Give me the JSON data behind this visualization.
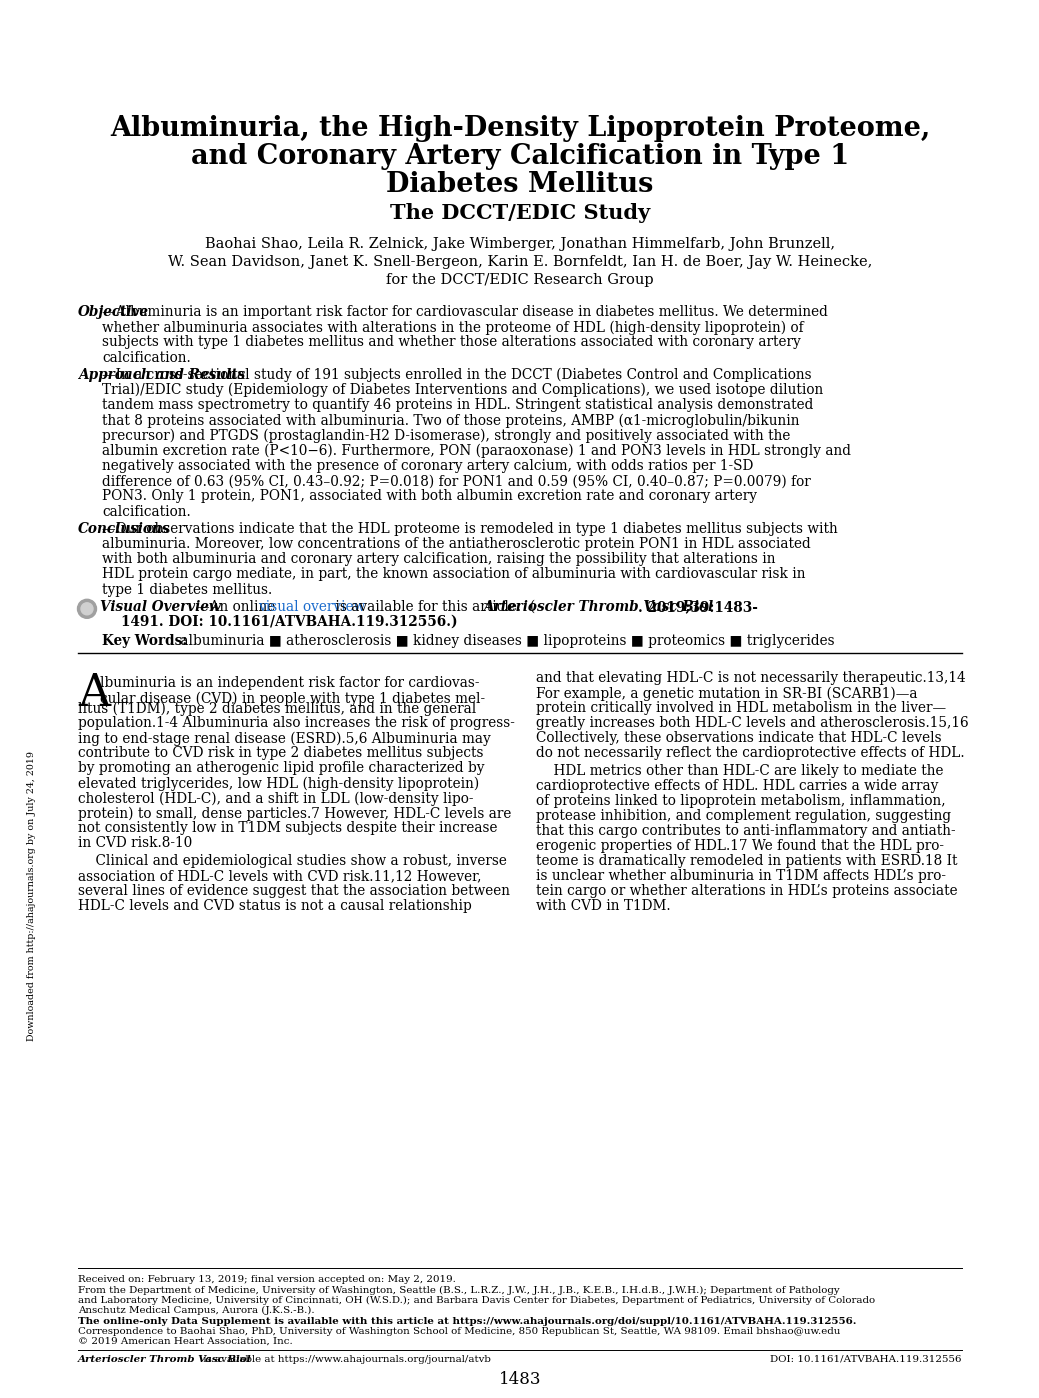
{
  "bg_color": "#ffffff",
  "title_line1": "Albuminuria, the High-Density Lipoprotein Proteome,",
  "title_line2": "and Coronary Artery Calcification in Type 1",
  "title_line3": "Diabetes Mellitus",
  "subtitle": "The DCCT/EDIC Study",
  "authors_line1": "Baohai Shao, Leila R. Zelnick, Jake Wimberger, Jonathan Himmelfarb, John Brunzell,",
  "authors_line2": "W. Sean Davidson, Janet K. Snell-Bergeon, Karin E. Bornfeldt, Ian H. de Boer, Jay W. Heinecke,",
  "authors_line3": "for the DCCT/EDIC Research Group",
  "obj_label": "Objective",
  "obj_text": "—Albuminuria is an important risk factor for cardiovascular disease in diabetes mellitus. We determined whether albuminuria associates with alterations in the proteome of HDL (high-density lipoprotein) of subjects with type 1 diabetes mellitus and whether those alterations associated with coronary artery calcification.",
  "app_label": "Approach and Results",
  "app_text": "—In a cross-sectional study of 191 subjects enrolled in the DCCT (Diabetes Control and Complications Trial)/EDIC study (Epidemiology of Diabetes Interventions and Complications), we used isotope dilution tandem mass spectrometry to quantify 46 proteins in HDL. Stringent statistical analysis demonstrated that 8 proteins associated with albuminuria. Two of those proteins, AMBP (α1-microglobulin/bikunin precursor) and PTGDS (prostaglandin-H2 D-isomerase), strongly and positively associated with the albumin excretion rate (P<10−6). Furthermore, PON (paraoxonase) 1 and PON3 levels in HDL strongly and negatively associated with the presence of coronary artery calcium, with odds ratios per 1-SD difference of 0.63 (95% CI, 0.43–0.92; P=0.018) for PON1 and 0.59 (95% CI, 0.40–0.87; P=0.0079) for PON3. Only 1 protein, PON1, associated with both albumin excretion rate and coronary artery calcification.",
  "conc_label": "Conclusions",
  "conc_text": "—Our observations indicate that the HDL proteome is remodeled in type 1 diabetes mellitus subjects with albuminuria. Moreover, low concentrations of the antiatherosclerotic protein PON1 in HDL associated with both albuminuria and coronary artery calcification, raising the possibility that alterations in HDL protein cargo mediate, in part, the known association of albuminuria with cardiovascular risk in type 1 diabetes mellitus.",
  "vis_label": "Visual Overview",
  "vis_text1": "—An online ",
  "vis_link": "visual overview",
  "vis_text2": " is available for this article.  (",
  "vis_italic": "Arterioscler Thromb Vasc Biol",
  "vis_bold1": ". 2019;39:1483-",
  "vis_bold2": "    1491. DOI: 10.1161/ATVBAHA.119.312556.)",
  "kw_label": "Key Words:",
  "kw_text": " albuminuria ■ atherosclerosis ■ kidney diseases ■ lipoproteins ■ proteomics ■ triglycerides",
  "col1_p1a": "lbuminuria is an independent risk factor for cardiovas-",
  "col1_p1b": "cular disease (CVD) in people with type 1 diabetes mel-",
  "col1_p1c": "litus (T1DM), type 2 diabetes mellitus, and in the general",
  "col1_p1d": "population.1-4 Albuminuria also increases the risk of progress-",
  "col1_p1e": "ing to end-stage renal disease (ESRD).5,6 Albuminuria may",
  "col1_p1f": "contribute to CVD risk in type 2 diabetes mellitus subjects",
  "col1_p1g": "by promoting an atherogenic lipid profile characterized by",
  "col1_p1h": "elevated triglycerides, low HDL (high-density lipoprotein)",
  "col1_p1i": "cholesterol (HDL-C), and a shift in LDL (low-density lipo-",
  "col1_p1j": "protein) to small, dense particles.7 However, HDL-C levels are",
  "col1_p1k": "not consistently low in T1DM subjects despite their increase",
  "col1_p1l": "in CVD risk.8-10",
  "col1_p2a": "    Clinical and epidemiological studies show a robust, inverse",
  "col1_p2b": "association of HDL-C levels with CVD risk.11,12 However,",
  "col1_p2c": "several lines of evidence suggest that the association between",
  "col1_p2d": "HDL-C levels and CVD status is not a causal relationship",
  "col2_p1a": "and that elevating HDL-C is not necessarily therapeutic.13,14",
  "col2_p1b": "For example, a genetic mutation in SR-BI (SCARB1)—a",
  "col2_p1c": "protein critically involved in HDL metabolism in the liver—",
  "col2_p1d": "greatly increases both HDL-C levels and atherosclerosis.15,16",
  "col2_p1e": "Collectively, these observations indicate that HDL-C levels",
  "col2_p1f": "do not necessarily reflect the cardioprotective effects of HDL.",
  "col2_p2a": "    HDL metrics other than HDL-C are likely to mediate the",
  "col2_p2b": "cardioprotective effects of HDL. HDL carries a wide array",
  "col2_p2c": "of proteins linked to lipoprotein metabolism, inflammation,",
  "col2_p2d": "protease inhibition, and complement regulation, suggesting",
  "col2_p2e": "that this cargo contributes to anti-inflammatory and antiath-",
  "col2_p2f": "erogenic properties of HDL.17 We found that the HDL pro-",
  "col2_p2g": "teome is dramatically remodeled in patients with ESRD.18 It",
  "col2_p2h": "is unclear whether albuminuria in T1DM affects HDL’s pro-",
  "col2_p2i": "tein cargo or whether alterations in HDL’s proteins associate",
  "col2_p2j": "with CVD in T1DM.",
  "footer_received": "Received on: February 13, 2019; final version accepted on: May 2, 2019.",
  "footer_from1": "From the Department of Medicine, University of Washington, Seattle (B.S., L.R.Z., J.W., J.H., J.B., K.E.B., I.H.d.B., J.W.H.); Department of Pathology",
  "footer_from2": "and Laboratory Medicine, University of Cincinnati, OH (W.S.D.); and Barbara Davis Center for Diabetes, Department of Pediatrics, University of Colorado",
  "footer_from3": "Anschutz Medical Campus, Aurora (J.K.S.-B.).",
  "footer_supp": "The online-only Data Supplement is available with this article at https://www.ahajournals.org/doi/suppl/10.1161/ATVBAHA.119.312556.",
  "footer_corr": "Correspondence to Baohai Shao, PhD, University of Washington School of Medicine, 850 Republican St, Seattle, WA 98109. Email bhshao@uw.edu",
  "footer_copy": "© 2019 American Heart Association, Inc.",
  "footer_jnl": "Arterioscler Thromb Vasc Biol",
  "footer_jnl2": " is available at https://www.ahajournals.org/journal/atvb",
  "footer_doi": "DOI: 10.1161/ATVBAHA.119.312556",
  "page_num": "1483",
  "sidebar": "Downloaded from http://ahajournals.org by on July 24, 2019"
}
